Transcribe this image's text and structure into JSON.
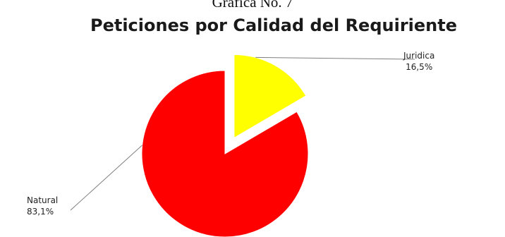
{
  "caption": "Gráfica No. 7",
  "chart_data": {
    "type": "pie",
    "title": "Peticiones por Calidad del Requiriente",
    "slices": [
      {
        "label": "Juridica",
        "value": 16.5,
        "value_label": "16,5%",
        "color": "#ffff00",
        "exploded": true
      },
      {
        "label": "Natural",
        "value": 83.1,
        "value_label": "83,1%",
        "color": "#ff0000",
        "exploded": false
      }
    ]
  }
}
